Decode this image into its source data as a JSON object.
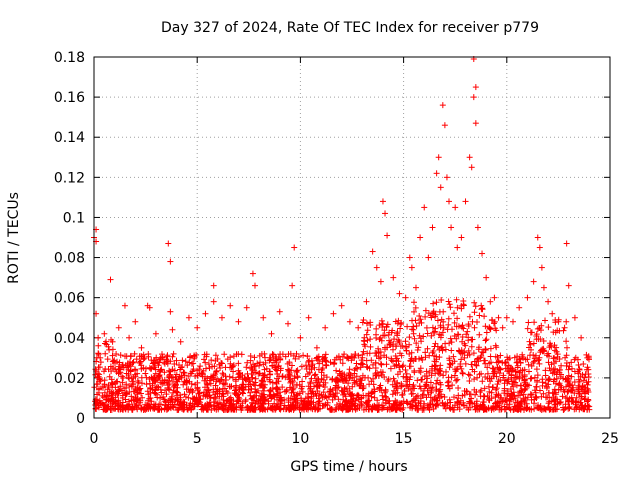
{
  "chart_data": {
    "type": "scatter",
    "title": "Day 327 of 2024, Rate Of TEC Index for receiver p779",
    "xlabel": "GPS time / hours",
    "ylabel": "ROTI / TECUs",
    "xlim": [
      0,
      25
    ],
    "ylim": [
      0,
      0.18
    ],
    "xticks": [
      0,
      5,
      10,
      15,
      20,
      25
    ],
    "xtick_labels": [
      "0",
      "5",
      "10",
      "15",
      "20",
      "25"
    ],
    "yticks": [
      0,
      0.02,
      0.04,
      0.06,
      0.08,
      0.1,
      0.12,
      0.14,
      0.16,
      0.18
    ],
    "ytick_labels": [
      "0",
      "0.02",
      "0.04",
      "0.06",
      "0.08",
      "0.1",
      "0.12",
      "0.14",
      "0.16",
      "0.18"
    ],
    "grid": true,
    "marker": "+",
    "marker_color": "#ff0000",
    "series": [
      {
        "name": "ROTI",
        "x": [
          0.0,
          0.1,
          0.1,
          0.1,
          0.2,
          0.3,
          0.5,
          0.8,
          0.9,
          1.2,
          1.5,
          1.7,
          2.0,
          2.3,
          2.6,
          2.7,
          3.0,
          3.3,
          3.6,
          3.7,
          3.7,
          3.8,
          4.2,
          4.6,
          5.0,
          5.4,
          5.8,
          5.8,
          6.2,
          6.6,
          7.0,
          7.4,
          7.7,
          7.8,
          8.2,
          8.6,
          9.0,
          9.4,
          9.6,
          9.7,
          10.0,
          10.4,
          10.8,
          11.2,
          11.6,
          12.0,
          12.4,
          12.8,
          13.2,
          13.5,
          13.7,
          13.9,
          14.0,
          14.1,
          14.2,
          14.5,
          14.8,
          15.1,
          15.3,
          15.4,
          15.6,
          15.8,
          16.0,
          16.2,
          16.4,
          16.6,
          16.7,
          16.8,
          16.9,
          17.0,
          17.1,
          17.2,
          17.3,
          17.5,
          17.6,
          17.8,
          18.0,
          18.2,
          18.3,
          18.4,
          18.4,
          18.5,
          18.5,
          18.6,
          18.8,
          19.0,
          19.2,
          19.4,
          19.6,
          19.8,
          20.0,
          20.3,
          20.6,
          21.0,
          21.3,
          21.5,
          21.6,
          21.7,
          21.8,
          22.0,
          22.2,
          22.5,
          22.8,
          22.9,
          23.0,
          23.3,
          23.6,
          23.9
        ],
        "y": [
          0.09,
          0.088,
          0.094,
          0.052,
          0.04,
          0.03,
          0.042,
          0.069,
          0.038,
          0.045,
          0.056,
          0.04,
          0.048,
          0.035,
          0.056,
          0.055,
          0.042,
          0.03,
          0.087,
          0.078,
          0.053,
          0.044,
          0.038,
          0.05,
          0.045,
          0.052,
          0.066,
          0.058,
          0.05,
          0.056,
          0.048,
          0.055,
          0.072,
          0.066,
          0.05,
          0.042,
          0.053,
          0.047,
          0.066,
          0.085,
          0.04,
          0.05,
          0.035,
          0.045,
          0.052,
          0.056,
          0.048,
          0.045,
          0.058,
          0.083,
          0.075,
          0.068,
          0.108,
          0.102,
          0.091,
          0.07,
          0.062,
          0.06,
          0.08,
          0.075,
          0.065,
          0.09,
          0.105,
          0.08,
          0.095,
          0.122,
          0.13,
          0.115,
          0.156,
          0.146,
          0.12,
          0.108,
          0.095,
          0.105,
          0.085,
          0.09,
          0.108,
          0.13,
          0.125,
          0.16,
          0.179,
          0.147,
          0.165,
          0.095,
          0.082,
          0.07,
          0.058,
          0.06,
          0.05,
          0.045,
          0.05,
          0.048,
          0.055,
          0.06,
          0.068,
          0.09,
          0.085,
          0.075,
          0.065,
          0.058,
          0.052,
          0.048,
          0.045,
          0.087,
          0.066,
          0.05,
          0.04,
          0.03
        ]
      }
    ]
  }
}
